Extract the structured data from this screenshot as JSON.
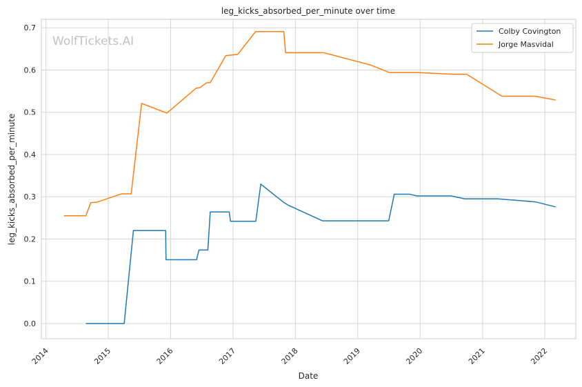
{
  "watermark": "WolfTickets.AI",
  "chart_data": {
    "type": "line",
    "title": "leg_kicks_absorbed_per_minute over time",
    "xlabel": "Date",
    "ylabel": "leg_kicks_absorbed_per_minute",
    "x_ticks": [
      "2014",
      "2015",
      "2016",
      "2017",
      "2018",
      "2019",
      "2020",
      "2021",
      "2022"
    ],
    "y_ticks": [
      "0.0",
      "0.1",
      "0.2",
      "0.3",
      "0.4",
      "0.5",
      "0.6",
      "0.7"
    ],
    "xlim": [
      "2013-12-05",
      "2022-07-01"
    ],
    "ylim": [
      -0.036,
      0.72
    ],
    "grid": true,
    "legend_position": "top-right",
    "series": [
      {
        "name": "Colby Covington",
        "color": "#1f77b4",
        "points": [
          [
            "2014-08-23",
            0.0
          ],
          [
            "2015-04-04",
            0.0
          ],
          [
            "2015-05-28",
            0.22
          ],
          [
            "2015-12-03",
            0.22
          ],
          [
            "2015-12-05",
            0.151
          ],
          [
            "2016-06-01",
            0.151
          ],
          [
            "2016-06-15",
            0.174
          ],
          [
            "2016-08-06",
            0.174
          ],
          [
            "2016-08-20",
            0.264
          ],
          [
            "2016-12-09",
            0.264
          ],
          [
            "2016-12-17",
            0.242
          ],
          [
            "2017-05-14",
            0.242
          ],
          [
            "2017-06-12",
            0.33
          ],
          [
            "2017-10-20",
            0.288
          ],
          [
            "2017-11-20",
            0.28
          ],
          [
            "2018-06-09",
            0.243
          ],
          [
            "2019-07-01",
            0.243
          ],
          [
            "2019-08-03",
            0.306
          ],
          [
            "2019-11-01",
            0.306
          ],
          [
            "2019-12-14",
            0.302
          ],
          [
            "2020-07-01",
            0.302
          ],
          [
            "2020-09-19",
            0.295
          ],
          [
            "2021-04-01",
            0.295
          ],
          [
            "2021-11-06",
            0.288
          ],
          [
            "2022-03-05",
            0.276
          ]
        ]
      },
      {
        "name": "Jorge Masvidal",
        "color": "#ff7f0e",
        "points": [
          [
            "2014-04-16",
            0.255
          ],
          [
            "2014-08-23",
            0.255
          ],
          [
            "2014-09-20",
            0.286
          ],
          [
            "2014-10-25",
            0.287
          ],
          [
            "2015-03-20",
            0.307
          ],
          [
            "2015-05-15",
            0.307
          ],
          [
            "2015-07-15",
            0.521
          ],
          [
            "2015-12-10",
            0.498
          ],
          [
            "2016-05-29",
            0.557
          ],
          [
            "2016-06-20",
            0.558
          ],
          [
            "2016-07-30",
            0.57
          ],
          [
            "2016-08-20",
            0.57
          ],
          [
            "2016-11-19",
            0.634
          ],
          [
            "2017-01-28",
            0.637
          ],
          [
            "2017-05-13",
            0.691
          ],
          [
            "2017-10-25",
            0.691
          ],
          [
            "2017-11-04",
            0.641
          ],
          [
            "2018-06-15",
            0.641
          ],
          [
            "2019-03-16",
            0.612
          ],
          [
            "2019-07-06",
            0.594
          ],
          [
            "2019-12-14",
            0.594
          ],
          [
            "2020-07-11",
            0.59
          ],
          [
            "2020-09-30",
            0.59
          ],
          [
            "2021-04-24",
            0.538
          ],
          [
            "2021-11-06",
            0.538
          ],
          [
            "2022-03-05",
            0.529
          ]
        ]
      }
    ]
  }
}
